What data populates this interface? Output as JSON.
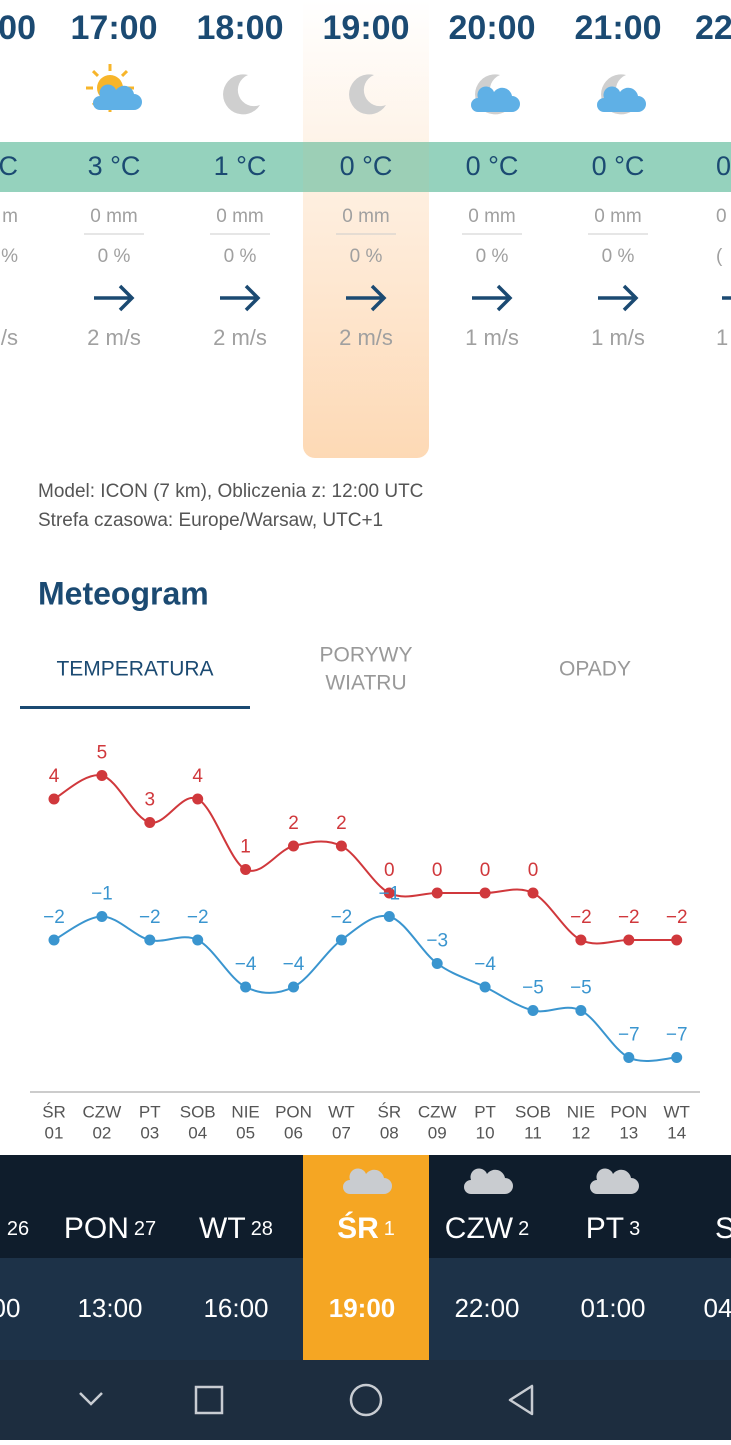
{
  "hourly": {
    "columns": [
      {
        "hour": "00",
        "temp": "C",
        "rain": "m",
        "prob": "%",
        "wind": "/s"
      },
      {
        "hour": "17:00",
        "temp": "3 °C",
        "rain": "0 mm",
        "prob": "0 %",
        "wind": "2 m/s"
      },
      {
        "hour": "18:00",
        "temp": "1 °C",
        "rain": "0 mm",
        "prob": "0 %",
        "wind": "2 m/s"
      },
      {
        "hour": "19:00",
        "temp": "0 °C",
        "rain": "0 mm",
        "prob": "0 %",
        "wind": "2 m/s"
      },
      {
        "hour": "20:00",
        "temp": "0 °C",
        "rain": "0 mm",
        "prob": "0 %",
        "wind": "1 m/s"
      },
      {
        "hour": "21:00",
        "temp": "0 °C",
        "rain": "0 mm",
        "prob": "0 %",
        "wind": "1 m/s"
      },
      {
        "hour": "22",
        "temp": "0",
        "rain": "0",
        "prob": "(",
        "wind": "1"
      }
    ]
  },
  "model_info": [
    "Model: ICON (7 km), Obliczenia z: 12:00 UTC",
    "Strefa czasowa: Europe/Warsaw, UTC+1"
  ],
  "meteogram": {
    "title": "Meteogram",
    "tabs": [
      {
        "lines": [
          "TEMPERATURA"
        ]
      },
      {
        "lines": [
          "PORYWY",
          "WIATRU"
        ]
      },
      {
        "lines": [
          "OPADY"
        ]
      }
    ],
    "chart": {
      "type": "line",
      "categories": [
        "ŚR",
        "CZW",
        "PT",
        "SOB",
        "NIE",
        "PON",
        "WT",
        "ŚR",
        "CZW",
        "PT",
        "SOB",
        "NIE",
        "PON",
        "WT"
      ],
      "dates": [
        "01",
        "02",
        "03",
        "04",
        "05",
        "06",
        "07",
        "08",
        "09",
        "10",
        "11",
        "12",
        "13",
        "14"
      ],
      "ylim": [
        -8,
        6
      ],
      "series": [
        {
          "color": "#d0383c",
          "values": [
            4,
            5,
            3,
            4,
            1,
            2,
            2,
            0,
            0,
            0,
            0,
            -2,
            -2,
            -2
          ],
          "value_labels": [
            "4",
            "5",
            "3",
            "4",
            "1",
            "2",
            "2",
            "0",
            "0",
            "0",
            "0",
            "−2",
            "−2",
            "−2"
          ]
        },
        {
          "color": "#3a95cf",
          "values": [
            -2,
            -1,
            -2,
            -2,
            -4,
            -4,
            -2,
            -1,
            -3,
            -4,
            -5,
            -5,
            -7,
            -7
          ],
          "value_labels": [
            "−2",
            "−1",
            "−2",
            "−2",
            "−4",
            "−4",
            "−2",
            "−1",
            "−3",
            "−4",
            "−5",
            "−5",
            "−7",
            "−7"
          ]
        }
      ]
    }
  },
  "day_bar": [
    {
      "num": "26"
    },
    {
      "name": "PON",
      "num": "27"
    },
    {
      "name": "WT",
      "num": "28"
    },
    {
      "name": "ŚR",
      "num": "1"
    },
    {
      "name": "CZW",
      "num": "2"
    },
    {
      "name": "PT",
      "num": "3"
    },
    {
      "name": "SO"
    }
  ],
  "time_bar": [
    "00",
    "13:00",
    "16:00",
    "19:00",
    "22:00",
    "01:00",
    "04"
  ]
}
